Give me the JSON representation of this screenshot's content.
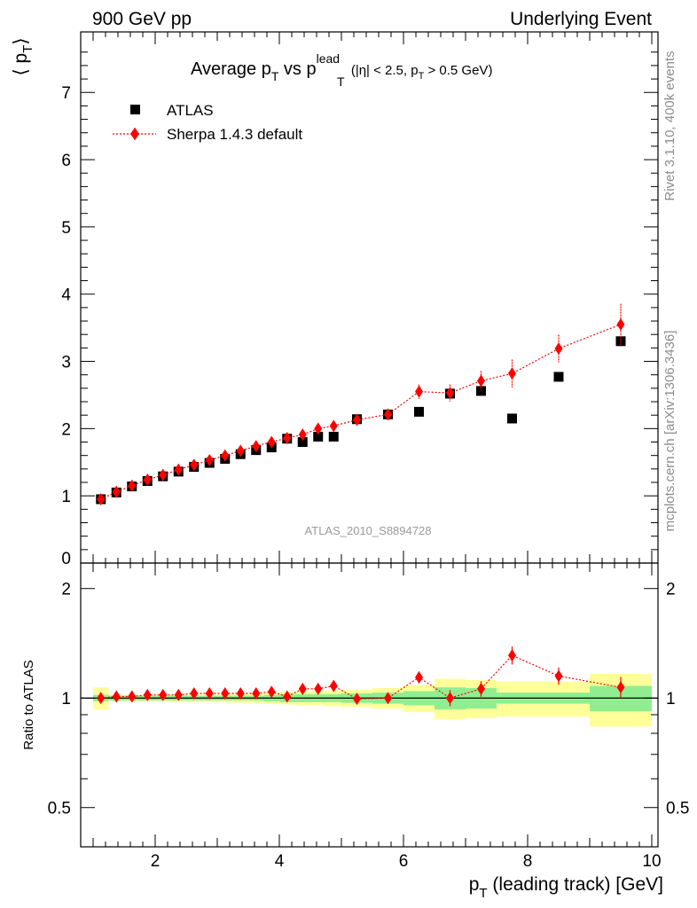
{
  "header": {
    "left": "900 GeV pp",
    "right": "Underlying Event"
  },
  "title": {
    "main": "Average p",
    "main_sub": "T",
    "vs": " vs p",
    "vs_sup": "lead",
    "vs_sub": "T",
    "cut_open": " (|η| < 2.5, p",
    "cut_sub": "T",
    "cut_close": " > 0.5 GeV)"
  },
  "side_text": {
    "rivet": "Rivet 3.1.10,  400k events",
    "mcplots": "mcplots.cern.ch [arXiv:1306.3436]"
  },
  "watermark": "ATLAS_2010_S8894728",
  "y_axis": {
    "label_left": "⟨ p",
    "label_sub": "T",
    "label_right": "⟩"
  },
  "ratio_axis": {
    "label": "Ratio to ATLAS"
  },
  "x_axis": {
    "label_p": "p",
    "label_sub": "T",
    "label_rest": " (leading track) [GeV]"
  },
  "legend": {
    "atlas": "ATLAS",
    "sherpa": "Sherpa 1.4.3 default"
  },
  "colors": {
    "data": "#000000",
    "mc": "#ff0000",
    "band_inner": "#90ee90",
    "band_outer": "#ffff99"
  },
  "chart_data": [
    {
      "type": "scatter",
      "panel": "main",
      "x_name": "p_T (leading track) [GeV]",
      "xlim": [
        0.8,
        10.1
      ],
      "ylim": [
        0,
        7.9
      ],
      "y_ticks": [
        1,
        2,
        3,
        4,
        5,
        6,
        7
      ],
      "y_ticklabels": [
        "1",
        "2",
        "3",
        "4",
        "5",
        "6",
        "7"
      ],
      "x_ticks": [
        2,
        4,
        6,
        8,
        10
      ],
      "series": [
        {
          "name": "ATLAS",
          "marker": "square",
          "x": [
            1.125,
            1.375,
            1.625,
            1.875,
            2.125,
            2.375,
            2.625,
            2.875,
            3.125,
            3.375,
            3.625,
            3.875,
            4.125,
            4.375,
            4.625,
            4.875,
            5.25,
            5.75,
            6.25,
            6.75,
            7.25,
            7.75,
            8.5,
            9.5
          ],
          "y": [
            0.95,
            1.05,
            1.14,
            1.22,
            1.29,
            1.36,
            1.43,
            1.49,
            1.55,
            1.62,
            1.68,
            1.72,
            1.85,
            1.8,
            1.88,
            1.88,
            2.14,
            2.21,
            2.25,
            2.52,
            2.56,
            2.15,
            2.77,
            3.3
          ]
        },
        {
          "name": "Sherpa 1.4.3 default",
          "marker": "diamond",
          "x": [
            1.125,
            1.375,
            1.625,
            1.875,
            2.125,
            2.375,
            2.625,
            2.875,
            3.125,
            3.375,
            3.625,
            3.875,
            4.125,
            4.375,
            4.625,
            4.875,
            5.25,
            5.75,
            6.25,
            6.75,
            7.25,
            7.75,
            8.5,
            9.5
          ],
          "y": [
            0.95,
            1.06,
            1.15,
            1.24,
            1.31,
            1.39,
            1.46,
            1.53,
            1.6,
            1.67,
            1.74,
            1.8,
            1.86,
            1.91,
            2.0,
            2.04,
            2.13,
            2.21,
            2.55,
            2.53,
            2.71,
            2.82,
            3.19,
            3.55
          ],
          "yerr": [
            0.01,
            0.01,
            0.01,
            0.01,
            0.01,
            0.01,
            0.02,
            0.02,
            0.02,
            0.02,
            0.02,
            0.02,
            0.03,
            0.03,
            0.04,
            0.04,
            0.05,
            0.06,
            0.08,
            0.1,
            0.12,
            0.18,
            0.18,
            0.28
          ]
        }
      ]
    },
    {
      "type": "scatter",
      "panel": "ratio",
      "ylabel": "Ratio to ATLAS",
      "xlim": [
        0.8,
        10.1
      ],
      "ylim": [
        0.39,
        2.35
      ],
      "y_ticks": [
        0.5,
        1,
        2
      ],
      "y_ticklabels": [
        "0.5",
        "1",
        "2"
      ],
      "x_ticks": [
        2,
        4,
        6,
        8,
        10
      ],
      "x_ticklabels": [
        "2",
        "4",
        "6",
        "8",
        "10"
      ],
      "log_scale_y": true,
      "reference_line": 1.0,
      "bands": {
        "x_edges": [
          1.0,
          1.25,
          1.5,
          1.75,
          2.0,
          2.25,
          2.5,
          2.75,
          3.0,
          3.25,
          3.5,
          3.75,
          4.0,
          4.25,
          4.5,
          4.75,
          5.0,
          5.5,
          6.0,
          6.5,
          7.0,
          7.5,
          8.0,
          9.0,
          10.0
        ],
        "inner_low": [
          0.98,
          0.985,
          0.985,
          0.985,
          0.985,
          0.985,
          0.985,
          0.985,
          0.985,
          0.985,
          0.985,
          0.98,
          0.975,
          0.975,
          0.975,
          0.975,
          0.97,
          0.965,
          0.955,
          0.93,
          0.935,
          0.965,
          0.965,
          0.92
        ],
        "inner_high": [
          1.02,
          1.015,
          1.015,
          1.015,
          1.015,
          1.015,
          1.015,
          1.015,
          1.015,
          1.015,
          1.015,
          1.02,
          1.025,
          1.025,
          1.025,
          1.025,
          1.03,
          1.035,
          1.045,
          1.07,
          1.065,
          1.035,
          1.035,
          1.08
        ],
        "outer_low": [
          0.93,
          0.98,
          0.98,
          0.98,
          0.98,
          0.975,
          0.975,
          0.975,
          0.975,
          0.97,
          0.97,
          0.965,
          0.96,
          0.955,
          0.955,
          0.95,
          0.945,
          0.935,
          0.915,
          0.875,
          0.88,
          0.89,
          0.89,
          0.835
        ],
        "outer_high": [
          1.07,
          1.02,
          1.02,
          1.02,
          1.02,
          1.025,
          1.025,
          1.025,
          1.025,
          1.03,
          1.03,
          1.035,
          1.04,
          1.045,
          1.045,
          1.05,
          1.055,
          1.065,
          1.085,
          1.13,
          1.12,
          1.11,
          1.11,
          1.165
        ]
      },
      "series": [
        {
          "name": "Sherpa 1.4.3 default",
          "marker": "diamond",
          "x": [
            1.125,
            1.375,
            1.625,
            1.875,
            2.125,
            2.375,
            2.625,
            2.875,
            3.125,
            3.375,
            3.625,
            3.875,
            4.125,
            4.375,
            4.625,
            4.875,
            5.25,
            5.75,
            6.25,
            6.75,
            7.25,
            7.75,
            8.5,
            9.5
          ],
          "y": [
            1.0,
            1.01,
            1.01,
            1.02,
            1.02,
            1.02,
            1.03,
            1.03,
            1.03,
            1.03,
            1.03,
            1.04,
            1.01,
            1.06,
            1.06,
            1.08,
            0.995,
            1.0,
            1.14,
            1.0,
            1.06,
            1.31,
            1.15,
            1.07
          ],
          "yerr": [
            0.01,
            0.01,
            0.01,
            0.01,
            0.01,
            0.01,
            0.01,
            0.01,
            0.01,
            0.01,
            0.01,
            0.01,
            0.015,
            0.015,
            0.02,
            0.02,
            0.02,
            0.02,
            0.03,
            0.04,
            0.04,
            0.06,
            0.05,
            0.06
          ]
        }
      ]
    }
  ]
}
